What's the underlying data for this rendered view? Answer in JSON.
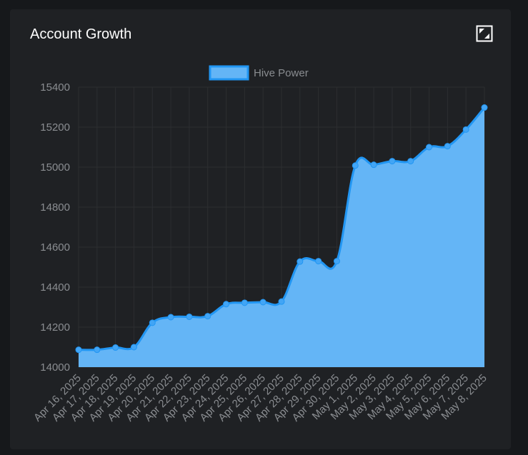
{
  "card": {
    "title": "Account Growth",
    "expand_icon": "expand-icon"
  },
  "colors": {
    "fill": "#64b5f6",
    "line": "#2196f3",
    "point": "#42a5f5",
    "grid": "#2c2e31",
    "tick_text": "#8a8d91",
    "background": "#1f2124"
  },
  "chart_data": {
    "type": "area",
    "title": "",
    "xlabel": "",
    "ylabel": "",
    "ylim": [
      14000,
      15400
    ],
    "yticks": [
      14000,
      14200,
      14400,
      14600,
      14800,
      15000,
      15200,
      15400
    ],
    "legend": {
      "position": "top-center"
    },
    "grid": true,
    "categories": [
      "Apr 16, 2025",
      "Apr 17, 2025",
      "Apr 18, 2025",
      "Apr 19, 2025",
      "Apr 20, 2025",
      "Apr 21, 2025",
      "Apr 22, 2025",
      "Apr 23, 2025",
      "Apr 24, 2025",
      "Apr 25, 2025",
      "Apr 26, 2025",
      "Apr 27, 2025",
      "Apr 28, 2025",
      "Apr 29, 2025",
      "Apr 30, 2025",
      "May 1, 2025",
      "May 2, 2025",
      "May 3, 2025",
      "May 4, 2025",
      "May 5, 2025",
      "May 6, 2025",
      "May 7, 2025",
      "May 8, 2025"
    ],
    "series": [
      {
        "name": "Hive Power",
        "values": [
          14087,
          14087,
          14098,
          14100,
          14222,
          14250,
          14252,
          14255,
          14315,
          14322,
          14325,
          14328,
          14528,
          14530,
          14530,
          15008,
          15012,
          15030,
          15030,
          15100,
          15105,
          15188,
          15298
        ]
      }
    ]
  }
}
